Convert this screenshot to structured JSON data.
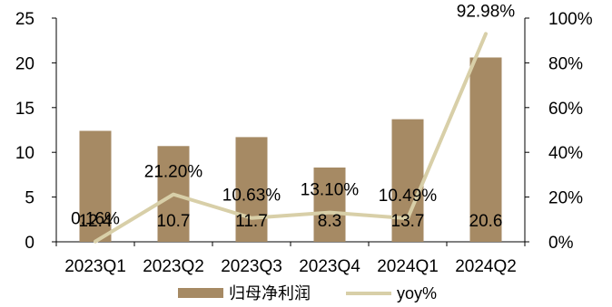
{
  "chart_data": {
    "type": "bar",
    "categories": [
      "2023Q1",
      "2023Q2",
      "2023Q3",
      "2023Q4",
      "2024Q1",
      "2024Q2"
    ],
    "series": [
      {
        "name": "归母净利润",
        "type": "bar",
        "axis": "left",
        "color": "#a68a64",
        "values": [
          12.4,
          10.7,
          11.7,
          8.3,
          13.7,
          20.6
        ],
        "labels": [
          "12.4",
          "10.7",
          "11.7",
          "8.3",
          "13.7",
          "20.6"
        ]
      },
      {
        "name": "yoy%",
        "type": "line",
        "axis": "right",
        "color": "#d8cfa8",
        "values": [
          0.16,
          21.2,
          10.63,
          13.1,
          10.49,
          92.98
        ],
        "labels": [
          "0.16%",
          "21.20%",
          "10.63%",
          "13.10%",
          "10.49%",
          "92.98%"
        ]
      }
    ],
    "y_left": {
      "min": 0,
      "max": 25,
      "ticks": [
        "0",
        "5",
        "10",
        "15",
        "20",
        "25"
      ]
    },
    "y_right": {
      "min": 0,
      "max": 100,
      "ticks": [
        "0%",
        "20%",
        "40%",
        "60%",
        "80%",
        "100%"
      ]
    },
    "grid": false,
    "legend": "bottom"
  }
}
